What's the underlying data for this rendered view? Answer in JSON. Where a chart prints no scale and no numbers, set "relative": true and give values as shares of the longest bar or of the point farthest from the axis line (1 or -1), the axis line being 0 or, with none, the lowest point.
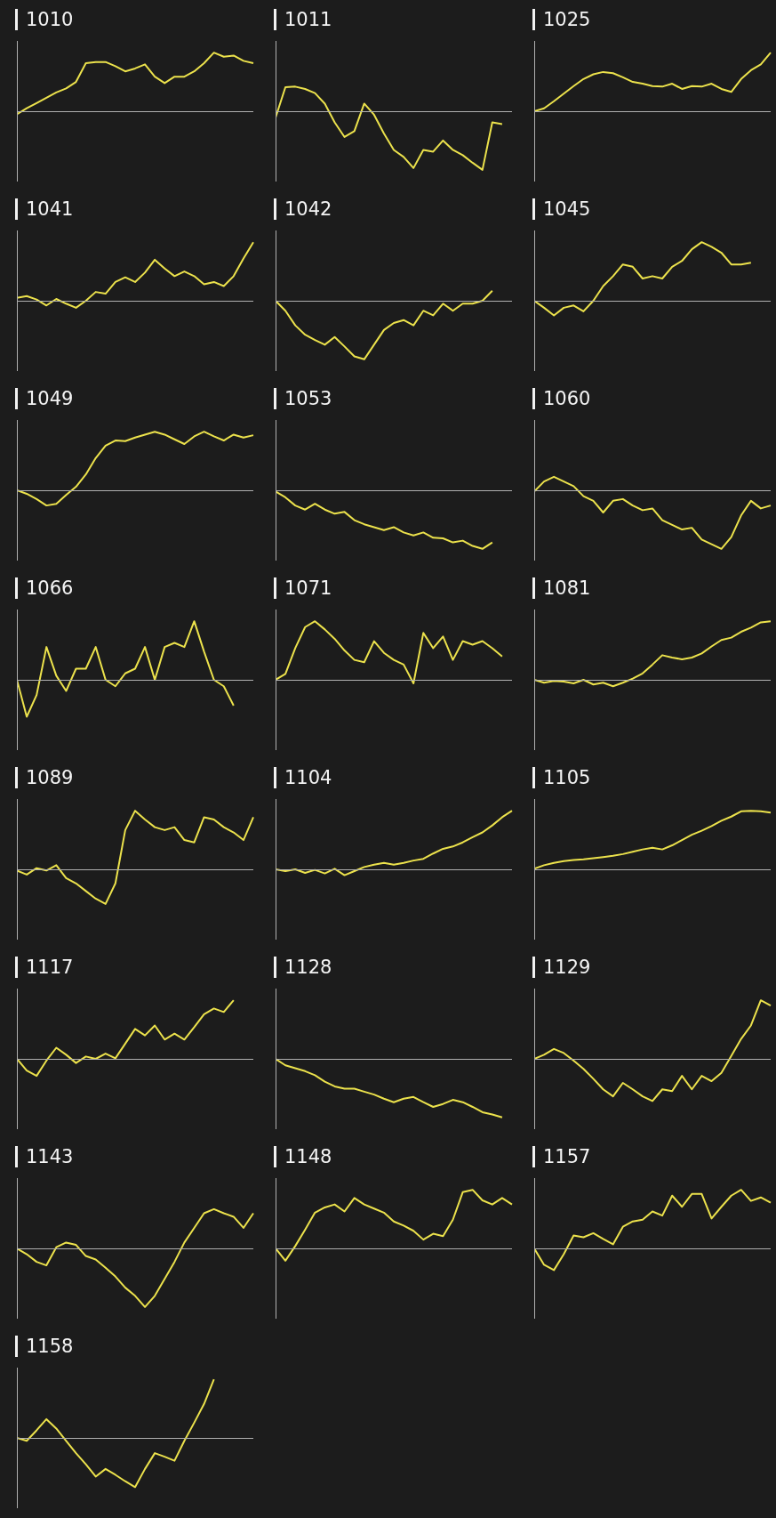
{
  "chart_data": [
    {
      "type": "line",
      "title": "1010",
      "relative": true,
      "color": "#ece24c",
      "categories": [
        null,
        null,
        null,
        null,
        null,
        null,
        null,
        null,
        null,
        null,
        null,
        null,
        null,
        null,
        null,
        null,
        null,
        null,
        null,
        null,
        null,
        null,
        null,
        null,
        null
      ],
      "values": [
        -0.05,
        0.05,
        0.14,
        0.23,
        0.32,
        0.39,
        0.5,
        0.82,
        0.84,
        0.84,
        0.77,
        0.68,
        0.73,
        0.8,
        0.59,
        0.48,
        0.59,
        0.59,
        0.68,
        0.82,
        1,
        0.93,
        0.95,
        0.86,
        0.82
      ]
    },
    {
      "type": "line",
      "title": "1011",
      "relative": true,
      "color": "#ece24c",
      "categories": [
        null,
        null,
        null,
        null,
        null,
        null,
        null,
        null,
        null,
        null,
        null,
        null,
        null,
        null,
        null,
        null,
        null,
        null,
        null,
        null,
        null,
        null,
        null,
        null,
        null
      ],
      "values": [
        -0.11,
        0.41,
        0.42,
        0.38,
        0.31,
        0.13,
        -0.19,
        -0.44,
        -0.34,
        0.13,
        -0.06,
        -0.38,
        -0.66,
        -0.78,
        -0.97,
        -0.66,
        -0.69,
        -0.5,
        -0.66,
        -0.75,
        -0.88,
        -1,
        -0.19,
        -0.22,
        null
      ]
    },
    {
      "type": "line",
      "title": "1025",
      "relative": true,
      "color": "#ece24c",
      "categories": [
        null,
        null,
        null,
        null,
        null,
        null,
        null,
        null,
        null,
        null,
        null,
        null,
        null,
        null,
        null,
        null,
        null,
        null,
        null,
        null,
        null,
        null,
        null,
        null,
        null
      ],
      "values": [
        0,
        0.05,
        0.17,
        0.3,
        0.43,
        0.55,
        0.63,
        0.67,
        0.65,
        0.58,
        0.5,
        0.47,
        0.43,
        0.42,
        0.47,
        0.38,
        0.43,
        0.42,
        0.47,
        0.38,
        0.33,
        0.55,
        0.7,
        0.8,
        1
      ]
    },
    {
      "type": "line",
      "title": "1041",
      "relative": true,
      "color": "#ece24c",
      "categories": [
        null,
        null,
        null,
        null,
        null,
        null,
        null,
        null,
        null,
        null,
        null,
        null,
        null,
        null,
        null,
        null,
        null,
        null,
        null,
        null,
        null,
        null,
        null,
        null,
        null
      ],
      "values": [
        0.05,
        0.08,
        0.02,
        -0.08,
        0.03,
        -0.05,
        -0.12,
        0,
        0.15,
        0.12,
        0.32,
        0.4,
        0.32,
        0.48,
        0.7,
        0.55,
        0.42,
        0.5,
        0.42,
        0.28,
        0.32,
        0.25,
        0.42,
        0.72,
        1
      ]
    },
    {
      "type": "line",
      "title": "1042",
      "relative": true,
      "color": "#ece24c",
      "categories": [
        null,
        null,
        null,
        null,
        null,
        null,
        null,
        null,
        null,
        null,
        null,
        null,
        null,
        null,
        null,
        null,
        null,
        null,
        null,
        null,
        null,
        null,
        null,
        null,
        null
      ],
      "values": [
        0,
        -0.17,
        -0.42,
        -0.58,
        -0.67,
        -0.75,
        -0.62,
        -0.78,
        -0.95,
        -1,
        -0.75,
        -0.5,
        -0.38,
        -0.33,
        -0.42,
        -0.17,
        -0.25,
        -0.05,
        -0.17,
        -0.05,
        -0.05,
        0,
        0.17,
        null,
        null
      ]
    },
    {
      "type": "line",
      "title": "1045",
      "relative": true,
      "color": "#ece24c",
      "categories": [
        null,
        null,
        null,
        null,
        null,
        null,
        null,
        null,
        null,
        null,
        null,
        null,
        null,
        null,
        null,
        null,
        null,
        null,
        null,
        null,
        null,
        null,
        null,
        null,
        null
      ],
      "values": [
        0,
        -0.12,
        -0.25,
        -0.12,
        -0.08,
        -0.18,
        0,
        0.25,
        0.42,
        0.62,
        0.58,
        0.38,
        0.42,
        0.38,
        0.58,
        0.68,
        0.88,
        1,
        0.92,
        0.82,
        0.62,
        0.62,
        0.65,
        null,
        null
      ]
    },
    {
      "type": "line",
      "title": "1049",
      "relative": true,
      "color": "#ece24c",
      "categories": [
        null,
        null,
        null,
        null,
        null,
        null,
        null,
        null,
        null,
        null,
        null,
        null,
        null,
        null,
        null,
        null,
        null,
        null,
        null,
        null,
        null,
        null,
        null,
        null,
        null
      ],
      "values": [
        0,
        -0.06,
        -0.15,
        -0.26,
        -0.23,
        -0.08,
        0.06,
        0.27,
        0.55,
        0.76,
        0.85,
        0.84,
        0.9,
        0.95,
        1,
        0.95,
        0.87,
        0.79,
        0.92,
        1,
        0.92,
        0.85,
        0.95,
        0.9,
        0.94
      ]
    },
    {
      "type": "line",
      "title": "1053",
      "relative": true,
      "color": "#ece24c",
      "categories": [
        null,
        null,
        null,
        null,
        null,
        null,
        null,
        null,
        null,
        null,
        null,
        null,
        null,
        null,
        null,
        null,
        null,
        null,
        null,
        null,
        null,
        null,
        null,
        null,
        null
      ],
      "values": [
        -0.02,
        -0.12,
        -0.26,
        -0.33,
        -0.23,
        -0.33,
        -0.4,
        -0.37,
        -0.51,
        -0.58,
        -0.63,
        -0.68,
        -0.63,
        -0.72,
        -0.77,
        -0.72,
        -0.81,
        -0.82,
        -0.89,
        -0.86,
        -0.95,
        -1,
        -0.89,
        null,
        null
      ]
    },
    {
      "type": "line",
      "title": "1060",
      "relative": true,
      "color": "#ece24c",
      "categories": [
        null,
        null,
        null,
        null,
        null,
        null,
        null,
        null,
        null,
        null,
        null,
        null,
        null,
        null,
        null,
        null,
        null,
        null,
        null,
        null,
        null,
        null,
        null,
        null,
        null
      ],
      "values": [
        -0.02,
        0.15,
        0.23,
        0.15,
        0.07,
        -0.1,
        -0.18,
        -0.38,
        -0.18,
        -0.15,
        -0.26,
        -0.34,
        -0.31,
        -0.51,
        -0.59,
        -0.67,
        -0.64,
        -0.84,
        -0.92,
        -1,
        -0.8,
        -0.43,
        -0.18,
        -0.31,
        -0.26
      ]
    },
    {
      "type": "line",
      "title": "1066",
      "relative": true,
      "color": "#ece24c",
      "categories": [
        null,
        null,
        null,
        null,
        null,
        null,
        null,
        null,
        null,
        null,
        null,
        null,
        null,
        null,
        null,
        null,
        null,
        null,
        null,
        null,
        null,
        null,
        null,
        null,
        null
      ],
      "values": [
        0,
        -0.63,
        -0.26,
        0.56,
        0.07,
        -0.19,
        0.19,
        0.19,
        0.56,
        0,
        -0.11,
        0.11,
        0.19,
        0.56,
        0,
        0.56,
        0.63,
        0.56,
        1,
        0.48,
        0,
        -0.11,
        -0.44,
        null,
        null
      ]
    },
    {
      "type": "line",
      "title": "1071",
      "relative": true,
      "color": "#ece24c",
      "categories": [
        null,
        null,
        null,
        null,
        null,
        null,
        null,
        null,
        null,
        null,
        null,
        null,
        null,
        null,
        null,
        null,
        null,
        null,
        null,
        null,
        null,
        null,
        null,
        null,
        null
      ],
      "values": [
        0,
        0.1,
        0.54,
        0.9,
        1,
        0.86,
        0.7,
        0.5,
        0.34,
        0.3,
        0.66,
        0.46,
        0.34,
        0.26,
        -0.06,
        0.8,
        0.54,
        0.74,
        0.34,
        0.66,
        0.6,
        0.66,
        0.54,
        0.4,
        null
      ]
    },
    {
      "type": "line",
      "title": "1081",
      "relative": true,
      "color": "#ece24c",
      "categories": [
        null,
        null,
        null,
        null,
        null,
        null,
        null,
        null,
        null,
        null,
        null,
        null,
        null,
        null,
        null,
        null,
        null,
        null,
        null,
        null,
        null,
        null,
        null,
        null,
        null
      ],
      "values": [
        0,
        -0.05,
        -0.02,
        -0.03,
        -0.06,
        0,
        -0.08,
        -0.05,
        -0.11,
        -0.05,
        0.02,
        0.11,
        0.26,
        0.42,
        0.38,
        0.35,
        0.38,
        0.45,
        0.57,
        0.68,
        0.72,
        0.82,
        0.89,
        0.98,
        1
      ]
    },
    {
      "type": "line",
      "title": "1089",
      "relative": true,
      "color": "#ece24c",
      "categories": [
        null,
        null,
        null,
        null,
        null,
        null,
        null,
        null,
        null,
        null,
        null,
        null,
        null,
        null,
        null,
        null,
        null,
        null,
        null,
        null,
        null,
        null,
        null,
        null,
        null
      ],
      "values": [
        -0.02,
        -0.09,
        0.02,
        -0.02,
        0.07,
        -0.15,
        -0.24,
        -0.37,
        -0.5,
        -0.59,
        -0.24,
        0.67,
        1,
        0.85,
        0.72,
        0.67,
        0.72,
        0.5,
        0.46,
        0.89,
        0.85,
        0.72,
        0.63,
        0.5,
        0.89
      ]
    },
    {
      "type": "line",
      "title": "1104",
      "relative": true,
      "color": "#ece24c",
      "categories": [
        null,
        null,
        null,
        null,
        null,
        null,
        null,
        null,
        null,
        null,
        null,
        null,
        null,
        null,
        null,
        null,
        null,
        null,
        null,
        null,
        null,
        null,
        null,
        null,
        null
      ],
      "values": [
        0,
        -0.03,
        0,
        -0.06,
        -0.01,
        -0.07,
        0.01,
        -0.1,
        -0.03,
        0.04,
        0.08,
        0.11,
        0.08,
        0.11,
        0.15,
        0.18,
        0.27,
        0.35,
        0.39,
        0.46,
        0.55,
        0.63,
        0.75,
        0.89,
        1
      ]
    },
    {
      "type": "line",
      "title": "1105",
      "relative": true,
      "color": "#ece24c",
      "categories": [
        null,
        null,
        null,
        null,
        null,
        null,
        null,
        null,
        null,
        null,
        null,
        null,
        null,
        null,
        null,
        null,
        null,
        null,
        null,
        null,
        null,
        null,
        null,
        null,
        null
      ],
      "values": [
        0.01,
        0.07,
        0.11,
        0.14,
        0.16,
        0.17,
        0.19,
        0.21,
        0.23,
        0.26,
        0.3,
        0.34,
        0.37,
        0.34,
        0.41,
        0.5,
        0.59,
        0.66,
        0.74,
        0.83,
        0.9,
        0.99,
        1,
        0.99,
        0.97
      ]
    },
    {
      "type": "line",
      "title": "1117",
      "relative": true,
      "color": "#ece24c",
      "categories": [
        null,
        null,
        null,
        null,
        null,
        null,
        null,
        null,
        null,
        null,
        null,
        null,
        null,
        null,
        null,
        null,
        null,
        null,
        null,
        null,
        null,
        null,
        null,
        null,
        null
      ],
      "values": [
        0,
        -0.2,
        -0.29,
        -0.03,
        0.19,
        0.07,
        -0.07,
        0.04,
        0,
        0.09,
        0.01,
        0.26,
        0.51,
        0.4,
        0.57,
        0.33,
        0.43,
        0.33,
        0.54,
        0.76,
        0.86,
        0.8,
        1,
        null,
        null
      ]
    },
    {
      "type": "line",
      "title": "1128",
      "relative": true,
      "color": "#ece24c",
      "categories": [
        null,
        null,
        null,
        null,
        null,
        null,
        null,
        null,
        null,
        null,
        null,
        null,
        null,
        null,
        null,
        null,
        null,
        null,
        null,
        null,
        null,
        null,
        null,
        null,
        null
      ],
      "values": [
        0,
        -0.11,
        -0.16,
        -0.21,
        -0.28,
        -0.39,
        -0.47,
        -0.51,
        -0.51,
        -0.56,
        -0.61,
        -0.68,
        -0.74,
        -0.68,
        -0.65,
        -0.74,
        -0.82,
        -0.77,
        -0.7,
        -0.74,
        -0.82,
        -0.91,
        -0.95,
        -1,
        null
      ]
    },
    {
      "type": "line",
      "title": "1129",
      "relative": true,
      "color": "#ece24c",
      "categories": [
        null,
        null,
        null,
        null,
        null,
        null,
        null,
        null,
        null,
        null,
        null,
        null,
        null,
        null,
        null,
        null,
        null,
        null,
        null,
        null,
        null,
        null,
        null,
        null,
        null
      ],
      "values": [
        0,
        0.07,
        0.17,
        0.1,
        -0.03,
        -0.17,
        -0.34,
        -0.52,
        -0.64,
        -0.41,
        -0.52,
        -0.64,
        -0.72,
        -0.52,
        -0.55,
        -0.29,
        -0.52,
        -0.29,
        -0.38,
        -0.24,
        0.05,
        0.34,
        0.57,
        1,
        0.91
      ]
    },
    {
      "type": "line",
      "title": "1143",
      "relative": true,
      "color": "#ece24c",
      "categories": [
        null,
        null,
        null,
        null,
        null,
        null,
        null,
        null,
        null,
        null,
        null,
        null,
        null,
        null,
        null,
        null,
        null,
        null,
        null,
        null,
        null,
        null,
        null,
        null,
        null
      ],
      "values": [
        0,
        -0.1,
        -0.23,
        -0.29,
        0.02,
        0.1,
        0.06,
        -0.13,
        -0.19,
        -0.33,
        -0.48,
        -0.67,
        -0.81,
        -1,
        -0.81,
        -0.52,
        -0.23,
        0.1,
        0.35,
        0.6,
        0.67,
        0.6,
        0.54,
        0.35,
        0.6
      ]
    },
    {
      "type": "line",
      "title": "1148",
      "relative": true,
      "color": "#ece24c",
      "categories": [
        null,
        null,
        null,
        null,
        null,
        null,
        null,
        null,
        null,
        null,
        null,
        null,
        null,
        null,
        null,
        null,
        null,
        null,
        null,
        null,
        null,
        null,
        null,
        null,
        null
      ],
      "values": [
        0,
        -0.21,
        0.04,
        0.32,
        0.61,
        0.7,
        0.75,
        0.63,
        0.86,
        0.75,
        0.68,
        0.61,
        0.46,
        0.39,
        0.3,
        0.15,
        0.25,
        0.21,
        0.49,
        0.96,
        1,
        0.82,
        0.75,
        0.86,
        0.75
      ]
    },
    {
      "type": "line",
      "title": "1157",
      "relative": true,
      "color": "#ece24c",
      "categories": [
        null,
        null,
        null,
        null,
        null,
        null,
        null,
        null,
        null,
        null,
        null,
        null,
        null,
        null,
        null,
        null,
        null,
        null,
        null,
        null,
        null,
        null,
        null,
        null,
        null
      ],
      "values": [
        0,
        -0.28,
        -0.37,
        -0.1,
        0.22,
        0.19,
        0.26,
        0.16,
        0.07,
        0.37,
        0.46,
        0.49,
        0.63,
        0.56,
        0.9,
        0.71,
        0.93,
        0.93,
        0.51,
        0.71,
        0.9,
        1,
        0.81,
        0.87,
        0.78
      ]
    },
    {
      "type": "line",
      "title": "1158",
      "relative": true,
      "color": "#ece24c",
      "categories": [
        null,
        null,
        null,
        null,
        null,
        null,
        null,
        null,
        null,
        null,
        null,
        null,
        null,
        null,
        null,
        null,
        null,
        null,
        null,
        null,
        null,
        null,
        null,
        null,
        null
      ],
      "values": [
        0,
        -0.05,
        0.13,
        0.32,
        0.16,
        -0.05,
        -0.26,
        -0.45,
        -0.66,
        -0.53,
        -0.63,
        -0.74,
        -0.84,
        -0.53,
        -0.26,
        -0.32,
        -0.39,
        -0.05,
        0.26,
        0.58,
        1,
        null,
        null,
        null,
        null
      ]
    }
  ]
}
